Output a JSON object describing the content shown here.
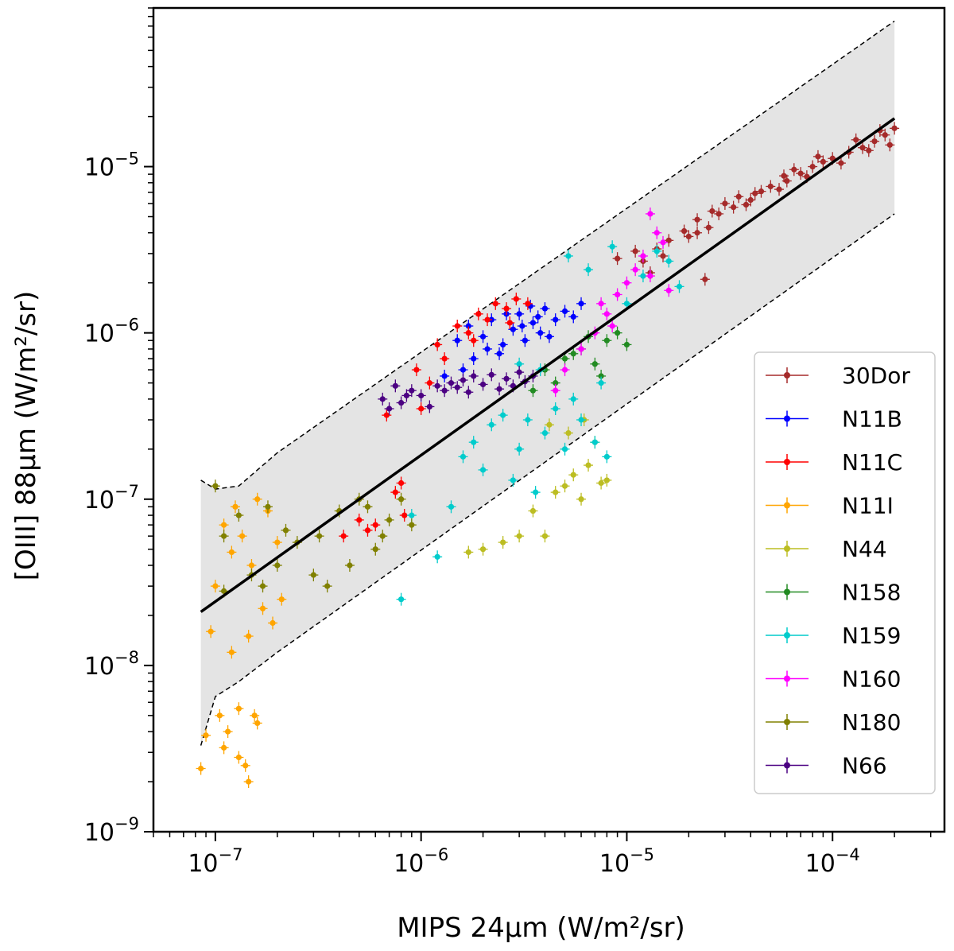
{
  "chart_data": {
    "type": "scatter",
    "title": "",
    "xlabel": "MIPS 24μm (W/m²/sr)",
    "ylabel": "[OIII] 88μm (W/m²/sr)",
    "xscale": "log",
    "yscale": "log",
    "xlim": [
      5e-08,
      0.00035
    ],
    "ylim": [
      1e-09,
      9e-05
    ],
    "x_ticks": [
      {
        "value": 1e-07,
        "base": "10",
        "exp": "−7"
      },
      {
        "value": 1e-06,
        "base": "10",
        "exp": "−6"
      },
      {
        "value": 1e-05,
        "base": "10",
        "exp": "−5"
      },
      {
        "value": 0.0001,
        "base": "10",
        "exp": "−4"
      }
    ],
    "y_ticks": [
      {
        "value": 1e-09,
        "base": "10",
        "exp": "−9"
      },
      {
        "value": 1e-08,
        "base": "10",
        "exp": "−8"
      },
      {
        "value": 1e-07,
        "base": "10",
        "exp": "−7"
      },
      {
        "value": 1e-06,
        "base": "10",
        "exp": "−6"
      },
      {
        "value": 1e-05,
        "base": "10",
        "exp": "−5"
      }
    ],
    "fit_line": {
      "x": [
        8.5e-08,
        0.0002
      ],
      "y": [
        2.1e-08,
        1.95e-05
      ],
      "color": "#000000"
    },
    "band_upper": {
      "x": [
        8.5e-08,
        1e-07,
        1.3e-07,
        2e-07,
        0.0002
      ],
      "y": [
        1.3e-07,
        1.15e-07,
        1.2e-07,
        1.9e-07,
        7.5e-05
      ]
    },
    "band_lower": {
      "x": [
        8.5e-08,
        1e-07,
        1.3e-07,
        2e-07,
        0.0002
      ],
      "y": [
        3.3e-09,
        6.5e-09,
        8e-09,
        1.2e-08,
        5.2e-06
      ]
    },
    "band_color": "#e4e4e4",
    "legend_location": "lower-right",
    "series": [
      {
        "name": "30Dor",
        "color": "#a52a2a",
        "points": [
          [
            1.2e-05,
            2.7e-06
          ],
          [
            1.4e-05,
            3.2e-06
          ],
          [
            1.6e-05,
            3.6e-06
          ],
          [
            1.9e-05,
            4.1e-06
          ],
          [
            2.2e-05,
            4.8e-06
          ],
          [
            2.6e-05,
            5.4e-06
          ],
          [
            3e-05,
            6e-06
          ],
          [
            3.5e-05,
            6.6e-06
          ],
          [
            4e-05,
            6.3e-06
          ],
          [
            4.5e-05,
            7.1e-06
          ],
          [
            5e-05,
            7.6e-06
          ],
          [
            6e-05,
            8.2e-06
          ],
          [
            7e-05,
            9.1e-06
          ],
          [
            8e-05,
            1e-05
          ],
          [
            9e-05,
            1.07e-05
          ],
          [
            0.0001,
            1.12e-05
          ],
          [
            0.00012,
            1.22e-05
          ],
          [
            0.00014,
            1.3e-05
          ],
          [
            0.00016,
            1.42e-05
          ],
          [
            0.00018,
            1.55e-05
          ],
          [
            0.0002,
            1.7e-05
          ],
          [
            1.3e-05,
            2.3e-06
          ],
          [
            1.5e-05,
            2.9e-06
          ],
          [
            2e-05,
            3.8e-06
          ],
          [
            2.5e-05,
            4.3e-06
          ],
          [
            2.8e-05,
            5.2e-06
          ],
          [
            3.3e-05,
            5.7e-06
          ],
          [
            4.2e-05,
            6.9e-06
          ],
          [
            5.5e-05,
            7.3e-06
          ],
          [
            6.5e-05,
            9.6e-06
          ],
          [
            7.5e-05,
            8.7e-06
          ],
          [
            8.5e-05,
            1.15e-05
          ],
          [
            0.00011,
            1.05e-05
          ],
          [
            0.00013,
            1.45e-05
          ],
          [
            0.00015,
            1.25e-05
          ],
          [
            0.00017,
            1.65e-05
          ],
          [
            0.00019,
            1.35e-05
          ],
          [
            2.2e-05,
            4e-06
          ],
          [
            3.8e-05,
            5.9e-06
          ],
          [
            5.8e-05,
            8.8e-06
          ],
          [
            1.1e-05,
            3.1e-06
          ],
          [
            2.4e-05,
            2.1e-06
          ],
          [
            9e-06,
            2.8e-06
          ]
        ]
      },
      {
        "name": "N11B",
        "color": "#0000ff",
        "points": [
          [
            1.5e-06,
            9e-07
          ],
          [
            1.7e-06,
            1.1e-06
          ],
          [
            2e-06,
            9.5e-07
          ],
          [
            2.2e-06,
            1.2e-06
          ],
          [
            2.5e-06,
            8.5e-07
          ],
          [
            2.8e-06,
            1.05e-06
          ],
          [
            3e-06,
            1.3e-06
          ],
          [
            3.2e-06,
            9e-07
          ],
          [
            3.5e-06,
            1.15e-06
          ],
          [
            3.8e-06,
            1e-06
          ],
          [
            4e-06,
            1.4e-06
          ],
          [
            4.5e-06,
            1.2e-06
          ],
          [
            5e-06,
            1.35e-06
          ],
          [
            5.5e-06,
            1.25e-06
          ],
          [
            6e-06,
            1.5e-06
          ],
          [
            1.8e-06,
            7e-07
          ],
          [
            2.4e-06,
            7.5e-07
          ],
          [
            2.6e-06,
            1.3e-06
          ],
          [
            3.4e-06,
            1.45e-06
          ],
          [
            1.3e-06,
            5.5e-07
          ],
          [
            1.6e-06,
            6e-07
          ],
          [
            4.2e-06,
            9.5e-07
          ],
          [
            2.1e-06,
            8e-07
          ],
          [
            3.1e-06,
            1.1e-06
          ],
          [
            3.7e-06,
            1.25e-06
          ]
        ]
      },
      {
        "name": "N11C",
        "color": "#ff0000",
        "points": [
          [
            9.5e-07,
            6e-07
          ],
          [
            1.1e-06,
            5e-07
          ],
          [
            1.2e-06,
            8.5e-07
          ],
          [
            1.3e-06,
            7e-07
          ],
          [
            1.5e-06,
            1.1e-06
          ],
          [
            1.7e-06,
            1e-06
          ],
          [
            1.9e-06,
            1.3e-06
          ],
          [
            2.1e-06,
            1.2e-06
          ],
          [
            2.3e-06,
            1.5e-06
          ],
          [
            2.6e-06,
            1.4e-06
          ],
          [
            2.9e-06,
            1.6e-06
          ],
          [
            3.3e-06,
            1.5e-06
          ],
          [
            6.8e-07,
            3.2e-07
          ],
          [
            7.5e-07,
            1.1e-07
          ],
          [
            8e-07,
            1.25e-07
          ],
          [
            8.3e-07,
            8e-08
          ],
          [
            4.2e-07,
            6e-08
          ],
          [
            5e-07,
            7.5e-08
          ],
          [
            5.5e-07,
            6.5e-08
          ],
          [
            6e-07,
            7e-08
          ],
          [
            1e-06,
            3.5e-07
          ],
          [
            1.8e-06,
            9e-07
          ],
          [
            2.7e-06,
            1.15e-06
          ]
        ]
      },
      {
        "name": "N11I",
        "color": "#ffa500",
        "points": [
          [
            8.5e-08,
            2.4e-09
          ],
          [
            9e-08,
            3.8e-09
          ],
          [
            9.5e-08,
            1.6e-08
          ],
          [
            1e-07,
            3e-08
          ],
          [
            1.05e-07,
            5e-09
          ],
          [
            1.1e-07,
            7e-08
          ],
          [
            1.15e-07,
            4e-09
          ],
          [
            1.2e-07,
            1.2e-08
          ],
          [
            1.25e-07,
            9e-08
          ],
          [
            1.3e-07,
            5.5e-09
          ],
          [
            1.35e-07,
            6e-08
          ],
          [
            1.4e-07,
            2.5e-09
          ],
          [
            1.45e-07,
            1.5e-08
          ],
          [
            1.5e-07,
            4e-08
          ],
          [
            1.55e-07,
            5e-09
          ],
          [
            1.6e-07,
            1e-07
          ],
          [
            1.7e-07,
            2.2e-08
          ],
          [
            1.8e-07,
            8.5e-08
          ],
          [
            1.9e-07,
            1.8e-08
          ],
          [
            2e-07,
            5.5e-08
          ],
          [
            2.1e-07,
            2.5e-08
          ],
          [
            1.1e-07,
            3.2e-09
          ],
          [
            1.3e-07,
            2.8e-09
          ],
          [
            1.45e-07,
            2e-09
          ],
          [
            1.6e-07,
            4.5e-09
          ],
          [
            1.2e-07,
            4.8e-08
          ]
        ]
      },
      {
        "name": "N44",
        "color": "#bcbd22",
        "points": [
          [
            2e-06,
            5e-08
          ],
          [
            2.5e-06,
            5.5e-08
          ],
          [
            3e-06,
            6e-08
          ],
          [
            3.5e-06,
            8.5e-08
          ],
          [
            4e-06,
            6e-08
          ],
          [
            4.5e-06,
            1.1e-07
          ],
          [
            5e-06,
            1.2e-07
          ],
          [
            5.5e-06,
            1.4e-07
          ],
          [
            6e-06,
            1e-07
          ],
          [
            6.5e-06,
            1.6e-07
          ],
          [
            7e-06,
            2.2e-07
          ],
          [
            7.5e-06,
            1.25e-07
          ],
          [
            8e-06,
            1.3e-07
          ],
          [
            4.2e-06,
            2.8e-07
          ],
          [
            5.2e-06,
            2.5e-07
          ],
          [
            6.2e-06,
            3e-07
          ],
          [
            1.7e-06,
            4.8e-08
          ]
        ]
      },
      {
        "name": "N158",
        "color": "#228b22",
        "points": [
          [
            4e-06,
            6e-07
          ],
          [
            5e-06,
            7e-07
          ],
          [
            6e-06,
            8e-07
          ],
          [
            7e-06,
            6.5e-07
          ],
          [
            8e-06,
            9e-07
          ],
          [
            9e-06,
            1e-06
          ],
          [
            1e-05,
            8.5e-07
          ],
          [
            4.5e-06,
            5e-07
          ],
          [
            5.5e-06,
            7.5e-07
          ],
          [
            6.5e-06,
            9.5e-07
          ],
          [
            7.5e-06,
            5.5e-07
          ],
          [
            3.5e-06,
            4.5e-07
          ]
        ]
      },
      {
        "name": "N159",
        "color": "#00cccc",
        "points": [
          [
            8e-07,
            2.5e-08
          ],
          [
            9e-07,
            8e-08
          ],
          [
            1.2e-06,
            4.5e-08
          ],
          [
            1.4e-06,
            9e-08
          ],
          [
            1.6e-06,
            1.8e-07
          ],
          [
            1.8e-06,
            2.2e-07
          ],
          [
            2e-06,
            1.5e-07
          ],
          [
            2.2e-06,
            2.8e-07
          ],
          [
            2.5e-06,
            3.2e-07
          ],
          [
            2.8e-06,
            1.3e-07
          ],
          [
            3e-06,
            2e-07
          ],
          [
            3.3e-06,
            3e-07
          ],
          [
            3.6e-06,
            1.1e-07
          ],
          [
            4e-06,
            2.5e-07
          ],
          [
            4.5e-06,
            3.5e-07
          ],
          [
            5e-06,
            2e-07
          ],
          [
            5.5e-06,
            4e-07
          ],
          [
            6e-06,
            3e-07
          ],
          [
            7e-06,
            2.2e-07
          ],
          [
            8e-06,
            1.8e-07
          ],
          [
            1e-05,
            1.5e-06
          ],
          [
            1.2e-05,
            2.2e-06
          ],
          [
            1.4e-05,
            3.1e-06
          ],
          [
            1.6e-05,
            2.7e-06
          ],
          [
            1.8e-05,
            1.9e-06
          ],
          [
            6.5e-06,
            2.4e-06
          ],
          [
            5.2e-06,
            2.9e-06
          ],
          [
            8.5e-06,
            3.3e-06
          ],
          [
            3.8e-06,
            6e-07
          ],
          [
            3e-06,
            6.5e-07
          ],
          [
            7.5e-06,
            5e-07
          ]
        ]
      },
      {
        "name": "N160",
        "color": "#ff00ff",
        "points": [
          [
            5e-06,
            6e-07
          ],
          [
            6e-06,
            8e-07
          ],
          [
            7e-06,
            1e-06
          ],
          [
            8e-06,
            1.3e-06
          ],
          [
            9e-06,
            1.7e-06
          ],
          [
            1e-05,
            2e-06
          ],
          [
            1.1e-05,
            2.4e-06
          ],
          [
            1.2e-05,
            2.9e-06
          ],
          [
            1.3e-05,
            2.2e-06
          ],
          [
            1.5e-05,
            3.5e-06
          ],
          [
            1.6e-05,
            1.8e-06
          ],
          [
            1.4e-05,
            4e-06
          ],
          [
            1.3e-05,
            5.2e-06
          ],
          [
            4.5e-06,
            4.5e-07
          ],
          [
            7.5e-06,
            1.5e-06
          ],
          [
            8.5e-06,
            1.1e-06
          ]
        ]
      },
      {
        "name": "N180",
        "color": "#808000",
        "points": [
          [
            1e-07,
            1.2e-07
          ],
          [
            1.1e-07,
            6e-08
          ],
          [
            1.3e-07,
            8e-08
          ],
          [
            1.5e-07,
            3.5e-08
          ],
          [
            1.7e-07,
            3e-08
          ],
          [
            1.8e-07,
            9e-08
          ],
          [
            2e-07,
            4e-08
          ],
          [
            2.5e-07,
            5.5e-08
          ],
          [
            3e-07,
            3.5e-08
          ],
          [
            3.5e-07,
            3e-08
          ],
          [
            4e-07,
            8.5e-08
          ],
          [
            4.5e-07,
            4e-08
          ],
          [
            5e-07,
            1e-07
          ],
          [
            5.5e-07,
            9e-08
          ],
          [
            6e-07,
            5e-08
          ],
          [
            6.5e-07,
            6e-08
          ],
          [
            7e-07,
            7.5e-08
          ],
          [
            8e-07,
            1e-07
          ],
          [
            9e-07,
            7e-08
          ],
          [
            1.1e-07,
            2.8e-08
          ],
          [
            2.2e-07,
            6.5e-08
          ],
          [
            3.2e-07,
            6e-08
          ]
        ]
      },
      {
        "name": "N66",
        "color": "#4b0082",
        "points": [
          [
            6.5e-07,
            4e-07
          ],
          [
            7e-07,
            3.5e-07
          ],
          [
            8e-07,
            3.8e-07
          ],
          [
            9e-07,
            4.5e-07
          ],
          [
            1e-06,
            4.2e-07
          ],
          [
            1.1e-06,
            3.6e-07
          ],
          [
            1.2e-06,
            4.8e-07
          ],
          [
            1.3e-06,
            4.5e-07
          ],
          [
            1.4e-06,
            5e-07
          ],
          [
            1.5e-06,
            4.7e-07
          ],
          [
            1.6e-06,
            5.2e-07
          ],
          [
            1.7e-06,
            4.4e-07
          ],
          [
            1.8e-06,
            5.5e-07
          ],
          [
            2e-06,
            4.9e-07
          ],
          [
            2.2e-06,
            5.6e-07
          ],
          [
            2.4e-06,
            4.6e-07
          ],
          [
            2.6e-06,
            5.3e-07
          ],
          [
            2.8e-06,
            4.8e-07
          ],
          [
            3e-06,
            5.8e-07
          ],
          [
            3.2e-06,
            5.1e-07
          ],
          [
            3.5e-06,
            5.5e-07
          ],
          [
            7.5e-07,
            4.8e-07
          ],
          [
            8.5e-07,
            4.2e-07
          ]
        ]
      }
    ]
  }
}
